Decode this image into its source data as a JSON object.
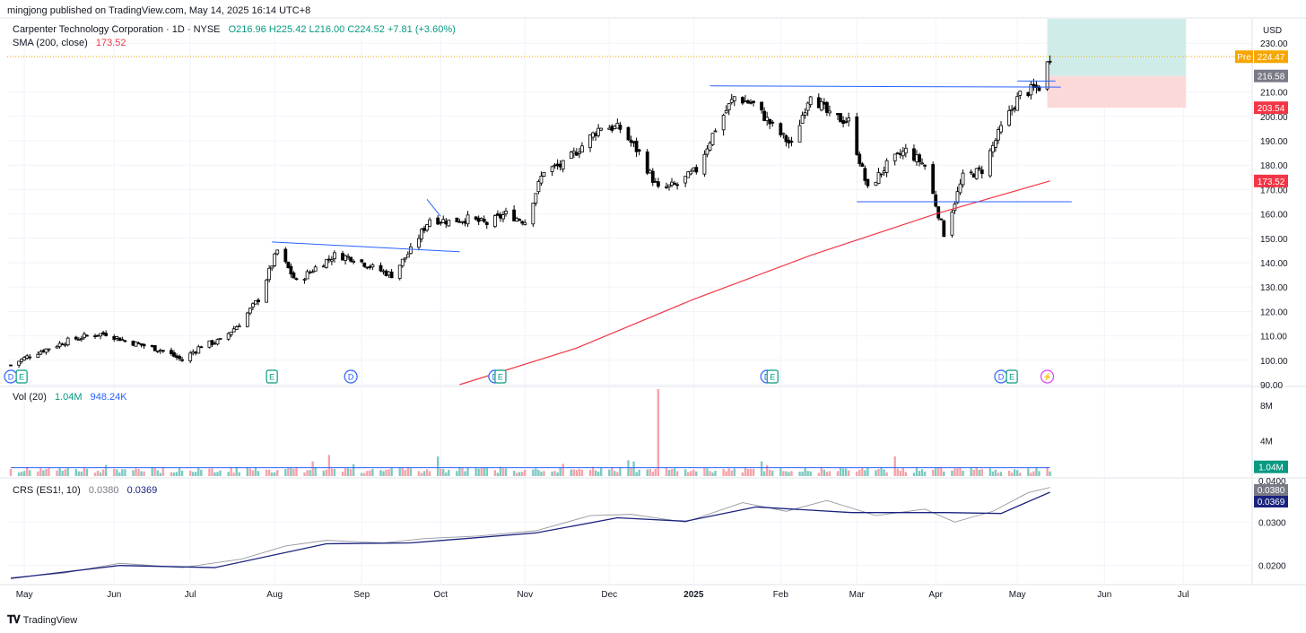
{
  "header": {
    "published": "mingjong published on TradingView.com, May 14, 2025 16:14 UTC+8",
    "symbol": "Carpenter Technology Corporation · 1D · NYSE",
    "ohlc": "O216.96  H225.42  L216.00  C224.52  +7.81 (+3.60%)",
    "sma_label": "SMA (200, close)",
    "sma_value": "173.52",
    "vol_label": "Vol (20)",
    "vol_value": "1.04M",
    "vol_ma_value": "948.24K",
    "crs_label": "CRS (ES1!, 10)",
    "crs_value": "0.0380",
    "crs_ma_value": "0.0369",
    "currency": "USD"
  },
  "footer": {
    "brand": "TradingView",
    "logo": "tv-logo-icon"
  },
  "chart_data": [
    {
      "type": "candlestick",
      "title": "Carpenter Technology Corporation · 1D · NYSE",
      "ylim": [
        90,
        240
      ],
      "y_ticks": [
        90,
        100,
        110,
        120,
        130,
        140,
        150,
        160,
        170,
        180,
        190,
        200,
        210,
        230
      ],
      "y_tick_labels": [
        "90.00",
        "100.00",
        "110.00",
        "120.00",
        "130.00",
        "140.00",
        "150.00",
        "160.00",
        "170.00",
        "180.00",
        "190.00",
        "200.00",
        "210.00",
        "230.00"
      ],
      "x_tick_labels": [
        "May",
        "Jun",
        "Jul",
        "Aug",
        "Sep",
        "Oct",
        "Nov",
        "Dec",
        "2025",
        "Feb",
        "Mar",
        "Apr",
        "May",
        "Jun",
        "Jul"
      ],
      "x_tick_dates": [
        "2024-05-01",
        "2024-06-03",
        "2024-07-01",
        "2024-08-01",
        "2024-09-02",
        "2024-10-01",
        "2024-11-01",
        "2024-12-02",
        "2025-01-02",
        "2025-02-03",
        "2025-03-03",
        "2025-04-01",
        "2025-05-01",
        "2025-06-02",
        "2025-07-01"
      ],
      "last_date": "2025-05-13",
      "close_path": [
        [
          "2024-04-26",
          98
        ],
        [
          "2024-05-03",
          102
        ],
        [
          "2024-05-10",
          105
        ],
        [
          "2024-05-17",
          108
        ],
        [
          "2024-05-24",
          110
        ],
        [
          "2024-05-31",
          111
        ],
        [
          "2024-06-07",
          108
        ],
        [
          "2024-06-14",
          106
        ],
        [
          "2024-06-21",
          104
        ],
        [
          "2024-06-28",
          100
        ],
        [
          "2024-07-05",
          106
        ],
        [
          "2024-07-12",
          108
        ],
        [
          "2024-07-19",
          115
        ],
        [
          "2024-07-26",
          125
        ],
        [
          "2024-08-02",
          145
        ],
        [
          "2024-08-09",
          132
        ],
        [
          "2024-08-16",
          138
        ],
        [
          "2024-08-23",
          143
        ],
        [
          "2024-08-30",
          142
        ],
        [
          "2024-09-06",
          138
        ],
        [
          "2024-09-13",
          135
        ],
        [
          "2024-09-20",
          145
        ],
        [
          "2024-09-27",
          158
        ],
        [
          "2024-10-04",
          157
        ],
        [
          "2024-10-11",
          158
        ],
        [
          "2024-10-18",
          156
        ],
        [
          "2024-10-25",
          160
        ],
        [
          "2024-11-01",
          157
        ],
        [
          "2024-11-08",
          178
        ],
        [
          "2024-11-15",
          180
        ],
        [
          "2024-11-22",
          188
        ],
        [
          "2024-11-29",
          196
        ],
        [
          "2024-12-06",
          195
        ],
        [
          "2024-12-13",
          185
        ],
        [
          "2024-12-20",
          170
        ],
        [
          "2024-12-27",
          172
        ],
        [
          "2025-01-03",
          178
        ],
        [
          "2025-01-10",
          195
        ],
        [
          "2025-01-17",
          208
        ],
        [
          "2025-01-24",
          205
        ],
        [
          "2025-01-31",
          196
        ],
        [
          "2025-02-07",
          188
        ],
        [
          "2025-02-14",
          210
        ],
        [
          "2025-02-21",
          200
        ],
        [
          "2025-02-28",
          198
        ],
        [
          "2025-03-07",
          170
        ],
        [
          "2025-03-14",
          180
        ],
        [
          "2025-03-21",
          186
        ],
        [
          "2025-03-28",
          180
        ],
        [
          "2025-04-04",
          152
        ],
        [
          "2025-04-11",
          175
        ],
        [
          "2025-04-18",
          178
        ],
        [
          "2025-04-25",
          195
        ],
        [
          "2025-05-02",
          209
        ],
        [
          "2025-05-09",
          212
        ],
        [
          "2025-05-13",
          224.52
        ]
      ],
      "sma200": [
        [
          "2024-10-08",
          90
        ],
        [
          "2024-11-20",
          105
        ],
        [
          "2025-01-02",
          125
        ],
        [
          "2025-02-14",
          143
        ],
        [
          "2025-04-01",
          160
        ],
        [
          "2025-05-13",
          173.52
        ]
      ],
      "trendlines": [
        {
          "from": [
            "2024-07-31",
            148.5
          ],
          "to": [
            "2024-10-08",
            144.5
          ]
        },
        {
          "from": [
            "2024-09-26",
            166
          ],
          "to": [
            "2024-10-01",
            159
          ]
        },
        {
          "from": [
            "2025-01-08",
            212.5
          ],
          "to": [
            "2025-05-17",
            212
          ]
        },
        {
          "from": [
            "2025-03-03",
            165
          ],
          "to": [
            "2025-05-21",
            165
          ]
        },
        {
          "from": [
            "2025-05-01",
            214.5
          ],
          "to": [
            "2025-05-15",
            214.5
          ]
        }
      ],
      "position_tool": {
        "entry": 216.58,
        "target": 240,
        "stop": 203.54,
        "start": "2025-05-12",
        "end": "2025-07-02"
      },
      "price_labels": [
        {
          "text": "224.52",
          "value": 224.52,
          "style": "plain"
        },
        {
          "text": "Pre",
          "value": 224.47,
          "style": "tag-orange"
        },
        {
          "text": "224.47",
          "value": 224.47,
          "style": "orange"
        },
        {
          "text": "216.58",
          "value": 216.58,
          "style": "grey"
        },
        {
          "text": "203.54",
          "value": 203.54,
          "style": "red"
        },
        {
          "text": "173.52",
          "value": 173.52,
          "style": "red"
        }
      ],
      "event_markers": [
        {
          "date": "2024-04-26",
          "kind": "D"
        },
        {
          "date": "2024-04-30",
          "kind": "E"
        },
        {
          "date": "2024-07-31",
          "kind": "E"
        },
        {
          "date": "2024-08-29",
          "kind": "D"
        },
        {
          "date": "2024-10-21",
          "kind": "D"
        },
        {
          "date": "2024-10-23",
          "kind": "E"
        },
        {
          "date": "2025-01-29",
          "kind": "D"
        },
        {
          "date": "2025-01-31",
          "kind": "E"
        },
        {
          "date": "2025-04-25",
          "kind": "D"
        },
        {
          "date": "2025-04-29",
          "kind": "E"
        },
        {
          "date": "2025-05-12",
          "kind": "split"
        }
      ],
      "colors": {
        "up": "#ffffff",
        "down": "#000000",
        "sma": "#f23645",
        "trend": "#2962ff",
        "profit": "#d0ece9",
        "loss": "#fbd9d9"
      }
    },
    {
      "type": "bar",
      "title": "Vol (20)",
      "ylim": [
        0,
        10
      ],
      "y_tick_labels": [
        "4M",
        "8M"
      ],
      "y_ticks": [
        4,
        8
      ],
      "last_value": "1.04M",
      "spike": {
        "date": "2024-12-20",
        "value": 9.8
      },
      "ma_level": 0.95,
      "colors": {
        "up": "#7fc9c2",
        "down": "#f5a3a8",
        "ma": "#2962ff"
      }
    },
    {
      "type": "line",
      "title": "CRS (ES1!, 10)",
      "ylim": [
        0.016,
        0.04
      ],
      "y_ticks": [
        0.02,
        0.03
      ],
      "y_tick_labels": [
        "0.0200",
        "0.0300"
      ],
      "top_label": "0.0400",
      "series": [
        {
          "name": "CRS (ES1!, 10)",
          "color": "#9598a1",
          "values": [
            [
              "2024-04-26",
              0.0172
            ],
            [
              "2024-05-15",
              0.0182
            ],
            [
              "2024-06-05",
              0.0205
            ],
            [
              "2024-06-28",
              0.0195
            ],
            [
              "2024-07-20",
              0.0215
            ],
            [
              "2024-08-05",
              0.0245
            ],
            [
              "2024-08-20",
              0.0258
            ],
            [
              "2024-09-10",
              0.0252
            ],
            [
              "2024-09-25",
              0.0262
            ],
            [
              "2024-10-15",
              0.0268
            ],
            [
              "2024-11-05",
              0.028
            ],
            [
              "2024-11-25",
              0.0315
            ],
            [
              "2024-12-10",
              0.0318
            ],
            [
              "2024-12-30",
              0.03
            ],
            [
              "2025-01-20",
              0.0345
            ],
            [
              "2025-02-05",
              0.0325
            ],
            [
              "2025-02-20",
              0.035
            ],
            [
              "2025-03-10",
              0.0315
            ],
            [
              "2025-03-28",
              0.033
            ],
            [
              "2025-04-08",
              0.03
            ],
            [
              "2025-04-22",
              0.0325
            ],
            [
              "2025-05-05",
              0.0368
            ],
            [
              "2025-05-13",
              0.038
            ]
          ]
        },
        {
          "name": "0.0369",
          "color": "#1a237e",
          "values": [
            [
              "2024-04-26",
              0.017
            ],
            [
              "2024-06-05",
              0.02
            ],
            [
              "2024-07-10",
              0.0195
            ],
            [
              "2024-08-20",
              0.025
            ],
            [
              "2024-09-20",
              0.0252
            ],
            [
              "2024-11-05",
              0.0275
            ],
            [
              "2024-12-05",
              0.031
            ],
            [
              "2024-12-30",
              0.0302
            ],
            [
              "2025-01-25",
              0.0335
            ],
            [
              "2025-03-01",
              0.0322
            ],
            [
              "2025-04-05",
              0.0322
            ],
            [
              "2025-04-25",
              0.032
            ],
            [
              "2025-05-13",
              0.0369
            ]
          ]
        }
      ]
    }
  ]
}
